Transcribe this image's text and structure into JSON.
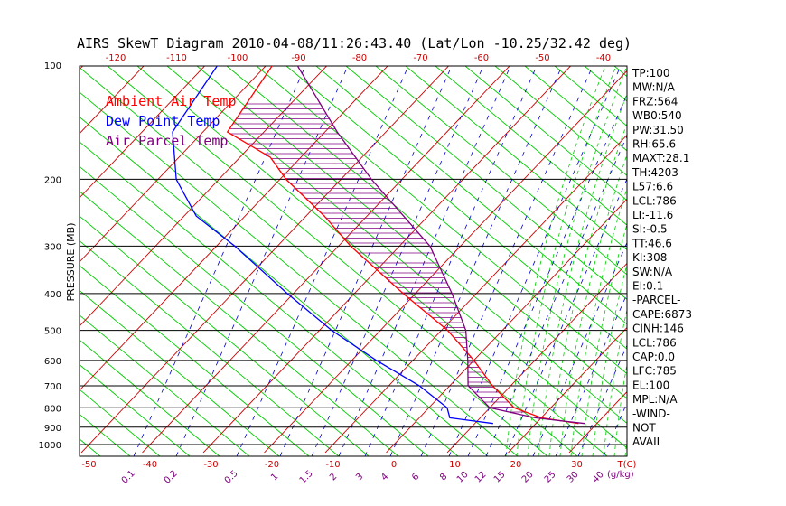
{
  "chart_data": {
    "type": "line",
    "title": "AIRS SkewT Diagram 2010-04-08/11:26:43.40 (Lat/Lon -10.25/32.42 deg)",
    "ylabel": "PRESSURE (MB)",
    "xlabel": "T(C)",
    "mixing_ratio_unit": "(g/kg)",
    "ylim": [
      1050,
      100
    ],
    "y_log_scale": true,
    "pressure_ticks": [
      100,
      200,
      300,
      400,
      500,
      600,
      700,
      800,
      900,
      1000
    ],
    "bottom_temp_ticks": [
      -50,
      -40,
      -30,
      -20,
      -10,
      0,
      10,
      20,
      30
    ],
    "top_temp_ticks": [
      -120,
      -110,
      -100,
      -90,
      -80,
      -70,
      -60,
      -50,
      -40
    ],
    "mixing_ratio_ticks": [
      "0.1",
      "0.2",
      "0.5",
      "1",
      "1.5",
      "2",
      "3",
      "4",
      "6",
      "8",
      "10",
      "12",
      "15",
      "20",
      "25",
      "30",
      "40"
    ],
    "legend": {
      "placement": "top-left",
      "items": [
        {
          "label": "Ambient Air Temp",
          "color": "#ff0000"
        },
        {
          "label": "Dew Point Temp",
          "color": "#0000ff"
        },
        {
          "label": "Air Parcel Temp",
          "color": "#800080"
        }
      ]
    },
    "grid": true,
    "series": [
      {
        "name": "Ambient Air Temp",
        "color": "#ff0000",
        "points": [
          [
            100,
            -79
          ],
          [
            150,
            -76
          ],
          [
            175,
            -65
          ],
          [
            200,
            -59
          ],
          [
            250,
            -47
          ],
          [
            300,
            -38
          ],
          [
            400,
            -22
          ],
          [
            500,
            -9
          ],
          [
            600,
            0
          ],
          [
            700,
            7
          ],
          [
            800,
            14
          ],
          [
            850,
            20
          ],
          [
            880,
            27
          ]
        ]
      },
      {
        "name": "Dew Point Temp",
        "color": "#0000ff",
        "points": [
          [
            100,
            -88
          ],
          [
            150,
            -85
          ],
          [
            200,
            -77
          ],
          [
            250,
            -68
          ],
          [
            300,
            -57
          ],
          [
            400,
            -41
          ],
          [
            500,
            -28
          ],
          [
            600,
            -16
          ],
          [
            700,
            -5
          ],
          [
            800,
            3
          ],
          [
            850,
            5
          ],
          [
            880,
            13
          ]
        ]
      },
      {
        "name": "Air Parcel Temp",
        "color": "#800080",
        "points": [
          [
            100,
            -75
          ],
          [
            150,
            -58
          ],
          [
            200,
            -45
          ],
          [
            250,
            -34
          ],
          [
            300,
            -25
          ],
          [
            400,
            -14
          ],
          [
            500,
            -6
          ],
          [
            600,
            -1
          ],
          [
            700,
            3
          ],
          [
            800,
            10
          ],
          [
            850,
            19
          ],
          [
            880,
            28
          ]
        ]
      }
    ]
  },
  "indices": [
    "TP:100",
    "MW:N/A",
    "FRZ:564",
    "WB0:540",
    "PW:31.50",
    "RH:65.6",
    "MAXT:28.1",
    "TH:4203",
    "L57:6.6",
    "LCL:786",
    "LI:-11.6",
    "SI:-0.5",
    "TT:46.6",
    "KI:308",
    "SW:N/A",
    "EI:0.1",
    "-PARCEL-",
    "CAPE:6873",
    "CINH:146",
    "LCL:786",
    "CAP:0.0",
    "LFC:785",
    "EL:100",
    "MPL:N/A",
    "-WIND-",
    "NOT",
    "AVAIL"
  ],
  "colors": {
    "dry_adiabat": "#00cc00",
    "isotherm": "#cc0000",
    "moist_adiabat": "#00cc00",
    "mixing_ratio": "#0000cc",
    "isobar": "#000000",
    "hatch": "#800080",
    "temp_tick": "#cc0000",
    "mixing_tick": "#800080"
  }
}
